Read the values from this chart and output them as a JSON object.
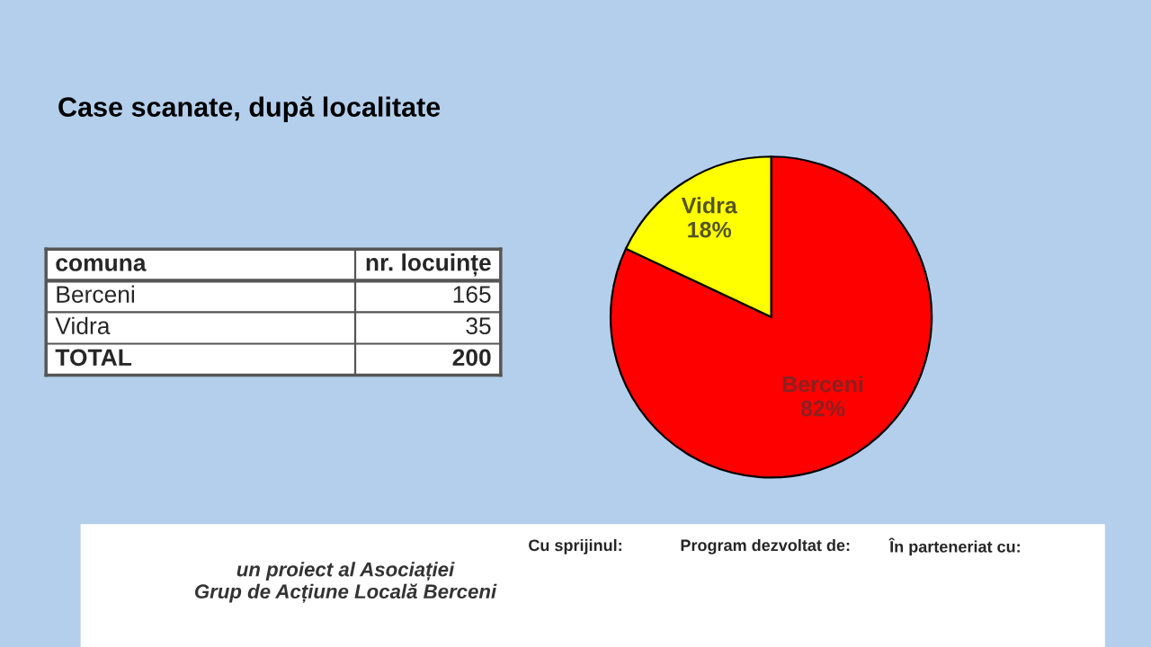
{
  "chart_data": [
    {
      "type": "pie",
      "title": "Case scanate, după localitate",
      "categories": [
        "Berceni",
        "Vidra"
      ],
      "values": [
        82,
        18
      ],
      "colors": [
        "#ff0000",
        "#ffff00"
      ],
      "value_labels": [
        "82%",
        "18%"
      ],
      "legend": false,
      "annotations": [
        "un proiect al Asociației\nGrup de Acțiune Locală Berceni",
        "Cu sprijinul:",
        "Program dezvoltat de:",
        "În parteneriat cu:"
      ]
    },
    {
      "type": "other",
      "categories": [
        "Berceni",
        "Vidra",
        "TOTAL"
      ],
      "values": [
        165,
        35,
        200
      ],
      "annotations": [
        "comuna",
        "nr. locuințe"
      ],
      "data_labels": true
    }
  ]
}
